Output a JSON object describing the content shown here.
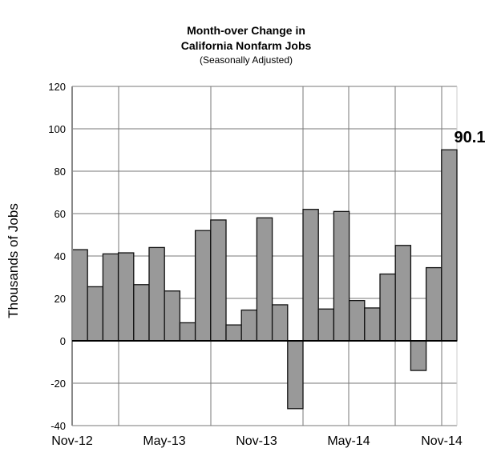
{
  "chart_data": {
    "type": "bar",
    "title": "Month-over Change in",
    "title_line2": "California Nonfarm Jobs",
    "subtitle": "(Seasonally Adjusted)",
    "xlabel": "",
    "ylabel": "Thousands of Jobs",
    "ylim": [
      -40,
      120
    ],
    "yticks": [
      -40,
      -20,
      0,
      20,
      40,
      60,
      80,
      100,
      120
    ],
    "ytick_labels": [
      "-40",
      "-20",
      "0",
      "20",
      "40",
      "60",
      "80",
      "100",
      "120"
    ],
    "x_tick_labels": [
      "Nov-12",
      "May-13",
      "Nov-13",
      "May-14",
      "Nov-14"
    ],
    "categories": [
      "Nov-12",
      "Dec-12",
      "Jan-13",
      "Feb-13",
      "Mar-13",
      "Apr-13",
      "May-13",
      "Jun-13",
      "Jul-13",
      "Aug-13",
      "Sep-13",
      "Oct-13",
      "Nov-13",
      "Dec-13",
      "Jan-14",
      "Feb-14",
      "Mar-14",
      "Apr-14",
      "May-14",
      "Jun-14",
      "Jul-14",
      "Aug-14",
      "Sep-14",
      "Oct-14",
      "Nov-14"
    ],
    "values": [
      43,
      25.5,
      41,
      41.5,
      26.5,
      44,
      23.5,
      8.5,
      52,
      57,
      7.5,
      14.5,
      58,
      17,
      -32,
      62,
      15,
      61,
      19,
      15.5,
      31.5,
      45,
      -14,
      34.5,
      90.1
    ],
    "annotation": "90.1",
    "grid": true,
    "bar_color": "#999999"
  }
}
